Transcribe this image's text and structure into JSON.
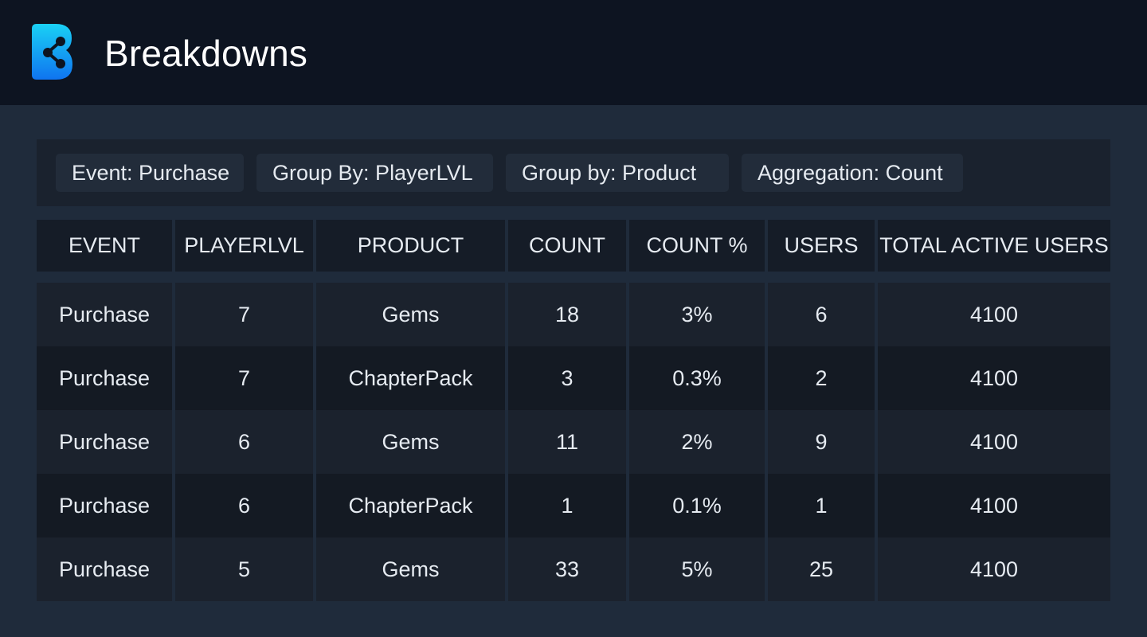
{
  "header": {
    "title": "Breakdowns",
    "logo_icon": "b-share-logo-icon",
    "logo_gradient": [
      "#1ad1f5",
      "#0f74f0"
    ]
  },
  "filters": [
    {
      "label": "Event: Purchase"
    },
    {
      "label": "Group By: PlayerLVL"
    },
    {
      "label": "Group by: Product"
    },
    {
      "label": "Aggregation: Count"
    }
  ],
  "table": {
    "columns": [
      "EVENT",
      "PLAYERLVL",
      "PRODUCT",
      "COUNT",
      "COUNT %",
      "USERS",
      "TOTAL ACTIVE USERS"
    ],
    "rows": [
      [
        "Purchase",
        "7",
        "Gems",
        "18",
        "3%",
        "6",
        "4100"
      ],
      [
        "Purchase",
        "7",
        "ChapterPack",
        "3",
        "0.3%",
        "2",
        "4100"
      ],
      [
        "Purchase",
        "6",
        "Gems",
        "11",
        "2%",
        "9",
        "4100"
      ],
      [
        "Purchase",
        "6",
        "ChapterPack",
        "1",
        "0.1%",
        "1",
        "4100"
      ],
      [
        "Purchase",
        "5",
        "Gems",
        "33",
        "5%",
        "25",
        "4100"
      ]
    ]
  },
  "colors": {
    "header_bg": "#0d1421",
    "page_bg": "#1f2b3b",
    "row_odd": "#1b222d",
    "row_even": "#141a23"
  }
}
